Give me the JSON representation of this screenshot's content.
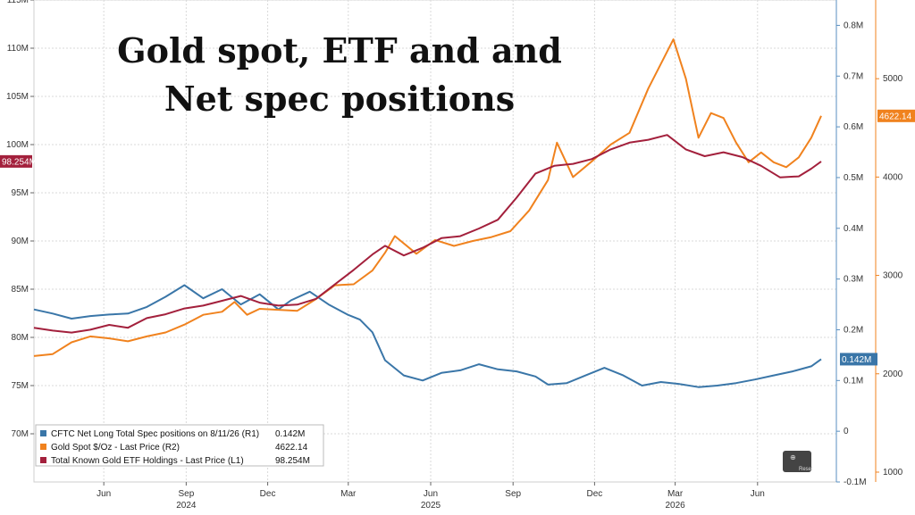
{
  "chart_data": {
    "type": "line",
    "title_lines": [
      "Gold spot, ETF and and",
      "Net spec positions"
    ],
    "x_tick_labels": [
      {
        "label": "Jun",
        "date": "2024-06-01"
      },
      {
        "label": "Sep",
        "date": "2024-09-01"
      },
      {
        "label": "Dec",
        "date": "2024-12-01"
      },
      {
        "label": "Mar",
        "date": "2025-03-01"
      },
      {
        "label": "Jun",
        "date": "2025-06-01"
      },
      {
        "label": "Sep",
        "date": "2025-09-01"
      },
      {
        "label": "Dec",
        "date": "2025-12-01"
      },
      {
        "label": "Mar",
        "date": "2026-03-01"
      },
      {
        "label": "Jun",
        "date": "2026-06-01"
      }
    ],
    "year_labels": [
      {
        "label": "2024",
        "date": "2024-09-01"
      },
      {
        "label": "2025",
        "date": "2025-06-01"
      },
      {
        "label": "2026",
        "date": "2026-03-01"
      }
    ],
    "x_range": [
      "2024-03-15",
      "2026-08-28"
    ],
    "axes": {
      "L1": {
        "range": [
          65,
          115
        ],
        "ticks": [
          70,
          75,
          80,
          85,
          90,
          95,
          100,
          105,
          110,
          115
        ],
        "suffix": "M"
      },
      "R1": {
        "range": [
          -0.1,
          0.85
        ],
        "ticks": [
          -0.1,
          0,
          0.1,
          0.2,
          0.3,
          0.4,
          0.5,
          0.6,
          0.7,
          0.8
        ],
        "labels": [
          "-0.1M",
          "0",
          "0.1M",
          "0.2M",
          "0.3M",
          "0.4M",
          "0.5M",
          "0.6M",
          "0.7M",
          "0.8M"
        ]
      },
      "R2": {
        "range": [
          900,
          5800
        ],
        "ticks": [
          1000,
          2000,
          3000,
          4000,
          5000
        ],
        "labels": [
          "1000",
          "2000",
          "3000",
          "4000",
          "5000"
        ]
      }
    },
    "series": [
      {
        "name": "CFTC Net Long Total Spec positions on 8/11/26 (R1)",
        "last_value": "0.142M",
        "axis": "R1",
        "color": "#3a76a8",
        "points": [
          [
            "2024-03-15",
            0.24
          ],
          [
            "2024-04-05",
            0.232
          ],
          [
            "2024-04-26",
            0.222
          ],
          [
            "2024-05-17",
            0.227
          ],
          [
            "2024-06-07",
            0.23
          ],
          [
            "2024-06-28",
            0.232
          ],
          [
            "2024-07-19",
            0.245
          ],
          [
            "2024-08-09",
            0.265
          ],
          [
            "2024-08-30",
            0.288
          ],
          [
            "2024-09-20",
            0.262
          ],
          [
            "2024-10-11",
            0.28
          ],
          [
            "2024-11-01",
            0.25
          ],
          [
            "2024-11-22",
            0.27
          ],
          [
            "2024-12-13",
            0.24
          ],
          [
            "2024-12-27",
            0.258
          ],
          [
            "2025-01-17",
            0.275
          ],
          [
            "2025-02-07",
            0.25
          ],
          [
            "2025-02-28",
            0.23
          ],
          [
            "2025-03-14",
            0.22
          ],
          [
            "2025-03-28",
            0.195
          ],
          [
            "2025-04-11",
            0.14
          ],
          [
            "2025-05-02",
            0.11
          ],
          [
            "2025-05-23",
            0.1
          ],
          [
            "2025-06-13",
            0.115
          ],
          [
            "2025-07-04",
            0.12
          ],
          [
            "2025-07-25",
            0.132
          ],
          [
            "2025-08-15",
            0.122
          ],
          [
            "2025-09-05",
            0.118
          ],
          [
            "2025-09-26",
            0.108
          ],
          [
            "2025-10-10",
            0.092
          ],
          [
            "2025-10-31",
            0.095
          ],
          [
            "2025-11-21",
            0.11
          ],
          [
            "2025-12-12",
            0.125
          ],
          [
            "2026-01-02",
            0.11
          ],
          [
            "2026-01-23",
            0.09
          ],
          [
            "2026-02-13",
            0.097
          ],
          [
            "2026-03-06",
            0.093
          ],
          [
            "2026-03-27",
            0.087
          ],
          [
            "2026-04-17",
            0.09
          ],
          [
            "2026-05-08",
            0.095
          ],
          [
            "2026-05-29",
            0.102
          ],
          [
            "2026-06-19",
            0.11
          ],
          [
            "2026-07-10",
            0.118
          ],
          [
            "2026-07-31",
            0.128
          ],
          [
            "2026-08-11",
            0.142
          ]
        ]
      },
      {
        "name": "Gold Spot $/Oz - Last Price (R2)",
        "last_value": "4622.14",
        "axis": "R2",
        "color": "#f0821e",
        "points": [
          [
            "2024-03-15",
            2180
          ],
          [
            "2024-04-05",
            2200
          ],
          [
            "2024-04-26",
            2320
          ],
          [
            "2024-05-17",
            2380
          ],
          [
            "2024-06-07",
            2360
          ],
          [
            "2024-06-28",
            2330
          ],
          [
            "2024-07-19",
            2380
          ],
          [
            "2024-08-09",
            2420
          ],
          [
            "2024-08-30",
            2500
          ],
          [
            "2024-09-20",
            2600
          ],
          [
            "2024-10-11",
            2630
          ],
          [
            "2024-10-25",
            2730
          ],
          [
            "2024-11-08",
            2600
          ],
          [
            "2024-11-22",
            2660
          ],
          [
            "2024-12-13",
            2650
          ],
          [
            "2025-01-03",
            2640
          ],
          [
            "2025-01-24",
            2760
          ],
          [
            "2025-02-14",
            2900
          ],
          [
            "2025-03-07",
            2910
          ],
          [
            "2025-03-28",
            3050
          ],
          [
            "2025-04-11",
            3230
          ],
          [
            "2025-04-22",
            3400
          ],
          [
            "2025-05-16",
            3220
          ],
          [
            "2025-06-06",
            3360
          ],
          [
            "2025-06-27",
            3300
          ],
          [
            "2025-07-18",
            3350
          ],
          [
            "2025-08-08",
            3390
          ],
          [
            "2025-08-29",
            3450
          ],
          [
            "2025-09-19",
            3660
          ],
          [
            "2025-10-10",
            3970
          ],
          [
            "2025-10-20",
            4350
          ],
          [
            "2025-11-07",
            4000
          ],
          [
            "2025-11-28",
            4160
          ],
          [
            "2025-12-19",
            4330
          ],
          [
            "2026-01-09",
            4450
          ],
          [
            "2026-01-30",
            4900
          ],
          [
            "2026-02-13",
            5150
          ],
          [
            "2026-02-27",
            5400
          ],
          [
            "2026-03-13",
            5000
          ],
          [
            "2026-03-27",
            4400
          ],
          [
            "2026-04-10",
            4650
          ],
          [
            "2026-04-24",
            4600
          ],
          [
            "2026-05-08",
            4350
          ],
          [
            "2026-05-22",
            4150
          ],
          [
            "2026-06-05",
            4250
          ],
          [
            "2026-06-19",
            4150
          ],
          [
            "2026-07-03",
            4100
          ],
          [
            "2026-07-17",
            4200
          ],
          [
            "2026-07-31",
            4400
          ],
          [
            "2026-08-11",
            4622
          ]
        ]
      },
      {
        "name": "Total Known Gold ETF Holdings - Last Price (L1)",
        "last_value": "98.254M",
        "axis": "L1",
        "color": "#a3203c",
        "points": [
          [
            "2024-03-15",
            81.0
          ],
          [
            "2024-04-05",
            80.7
          ],
          [
            "2024-04-26",
            80.5
          ],
          [
            "2024-05-17",
            80.8
          ],
          [
            "2024-06-07",
            81.3
          ],
          [
            "2024-06-28",
            81.0
          ],
          [
            "2024-07-19",
            82.0
          ],
          [
            "2024-08-09",
            82.4
          ],
          [
            "2024-08-30",
            83.0
          ],
          [
            "2024-09-20",
            83.3
          ],
          [
            "2024-10-11",
            83.8
          ],
          [
            "2024-11-01",
            84.3
          ],
          [
            "2024-11-22",
            83.6
          ],
          [
            "2024-12-13",
            83.3
          ],
          [
            "2025-01-03",
            83.4
          ],
          [
            "2025-01-24",
            84.0
          ],
          [
            "2025-02-14",
            85.5
          ],
          [
            "2025-03-07",
            87.0
          ],
          [
            "2025-03-28",
            88.6
          ],
          [
            "2025-04-11",
            89.5
          ],
          [
            "2025-05-02",
            88.5
          ],
          [
            "2025-05-23",
            89.3
          ],
          [
            "2025-06-13",
            90.3
          ],
          [
            "2025-07-04",
            90.5
          ],
          [
            "2025-07-25",
            91.3
          ],
          [
            "2025-08-15",
            92.2
          ],
          [
            "2025-09-05",
            94.5
          ],
          [
            "2025-09-26",
            97.0
          ],
          [
            "2025-10-17",
            97.8
          ],
          [
            "2025-11-07",
            98.0
          ],
          [
            "2025-11-28",
            98.5
          ],
          [
            "2025-12-19",
            99.5
          ],
          [
            "2026-01-09",
            100.2
          ],
          [
            "2026-01-30",
            100.5
          ],
          [
            "2026-02-20",
            101.0
          ],
          [
            "2026-03-13",
            99.5
          ],
          [
            "2026-04-03",
            98.8
          ],
          [
            "2026-04-24",
            99.2
          ],
          [
            "2026-05-15",
            98.7
          ],
          [
            "2026-06-05",
            97.8
          ],
          [
            "2026-06-26",
            96.6
          ],
          [
            "2026-07-17",
            96.7
          ],
          [
            "2026-07-31",
            97.5
          ],
          [
            "2026-08-11",
            98.254
          ]
        ]
      }
    ],
    "annotation_labels": [
      "Reset"
    ]
  }
}
